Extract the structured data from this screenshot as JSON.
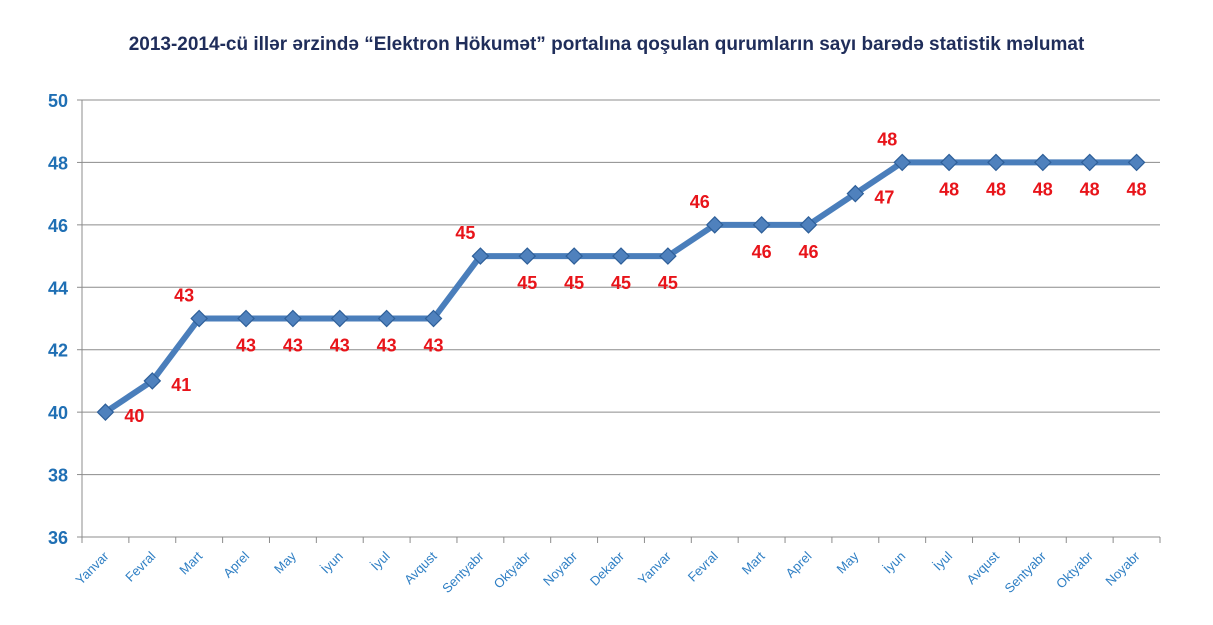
{
  "chart_data": {
    "type": "line",
    "title": "2013-2014-cü illər ərzində “Elektron Hökumət” portalına qoşulan qurumların sayı barədə statistik məlumat",
    "xlabel": "",
    "ylabel": "",
    "ylim": [
      36,
      50
    ],
    "yticks": [
      "36",
      "38",
      "40",
      "42",
      "44",
      "46",
      "48",
      "50"
    ],
    "grid": true,
    "legend": "none",
    "colors": {
      "line": "#4a7ebb",
      "marker": "#4f81bd",
      "label": "#e8141a",
      "axis_text": "#1f6fb4"
    },
    "categories": [
      "Yanvar",
      "Fevral",
      "Mart",
      "Aprel",
      "May",
      "İyun",
      "İyul",
      "Avqust",
      "Sentyabr",
      "Oktyabr",
      "Noyabr",
      "Dekabr",
      "Yanvar",
      "Fevral",
      "Mart",
      "Aprel",
      "May",
      "İyun",
      "İyul",
      "Avqust",
      "Sentyabr",
      "Oktyabr",
      "Noyabr"
    ],
    "series": [
      {
        "values": [
          40,
          41,
          43,
          43,
          43,
          43,
          43,
          43,
          45,
          45,
          45,
          45,
          45,
          46,
          46,
          46,
          47,
          48,
          48,
          48,
          48,
          48,
          48
        ]
      }
    ]
  }
}
